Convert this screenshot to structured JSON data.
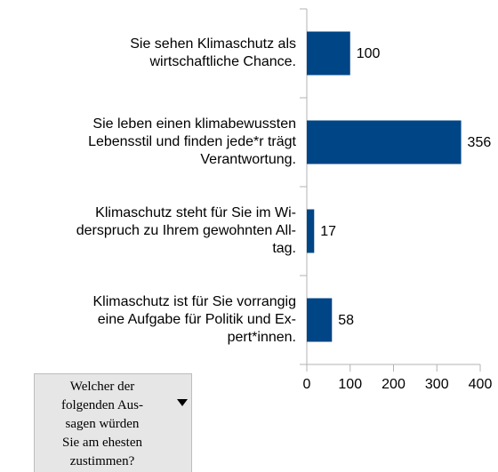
{
  "chart_data": {
    "type": "hbar",
    "categories": [
      [
        "Sie sehen Klimaschutz als",
        "wirtschaftliche Chance."
      ],
      [
        "Sie leben einen klimabewussten",
        "Lebensstil und finden jede*r trägt",
        "Verantwortung."
      ],
      [
        "Klimaschutz steht für Sie im Wi-",
        "derspruch zu Ihrem gewohnten All-",
        "tag."
      ],
      [
        "Klimaschutz ist für Sie vorrangig",
        "eine Aufgabe für Politik und Ex-",
        "pert*innen."
      ]
    ],
    "values": [
      100,
      356,
      17,
      58
    ],
    "color": "#004586",
    "xlim": [
      0,
      400
    ],
    "xticks": [
      0,
      100,
      200,
      300,
      400
    ]
  },
  "field_button": {
    "lines": [
      "Welcher der",
      "folgenden Aus-",
      "sagen würden",
      "Sie am ehesten",
      "zustimmen?"
    ]
  }
}
